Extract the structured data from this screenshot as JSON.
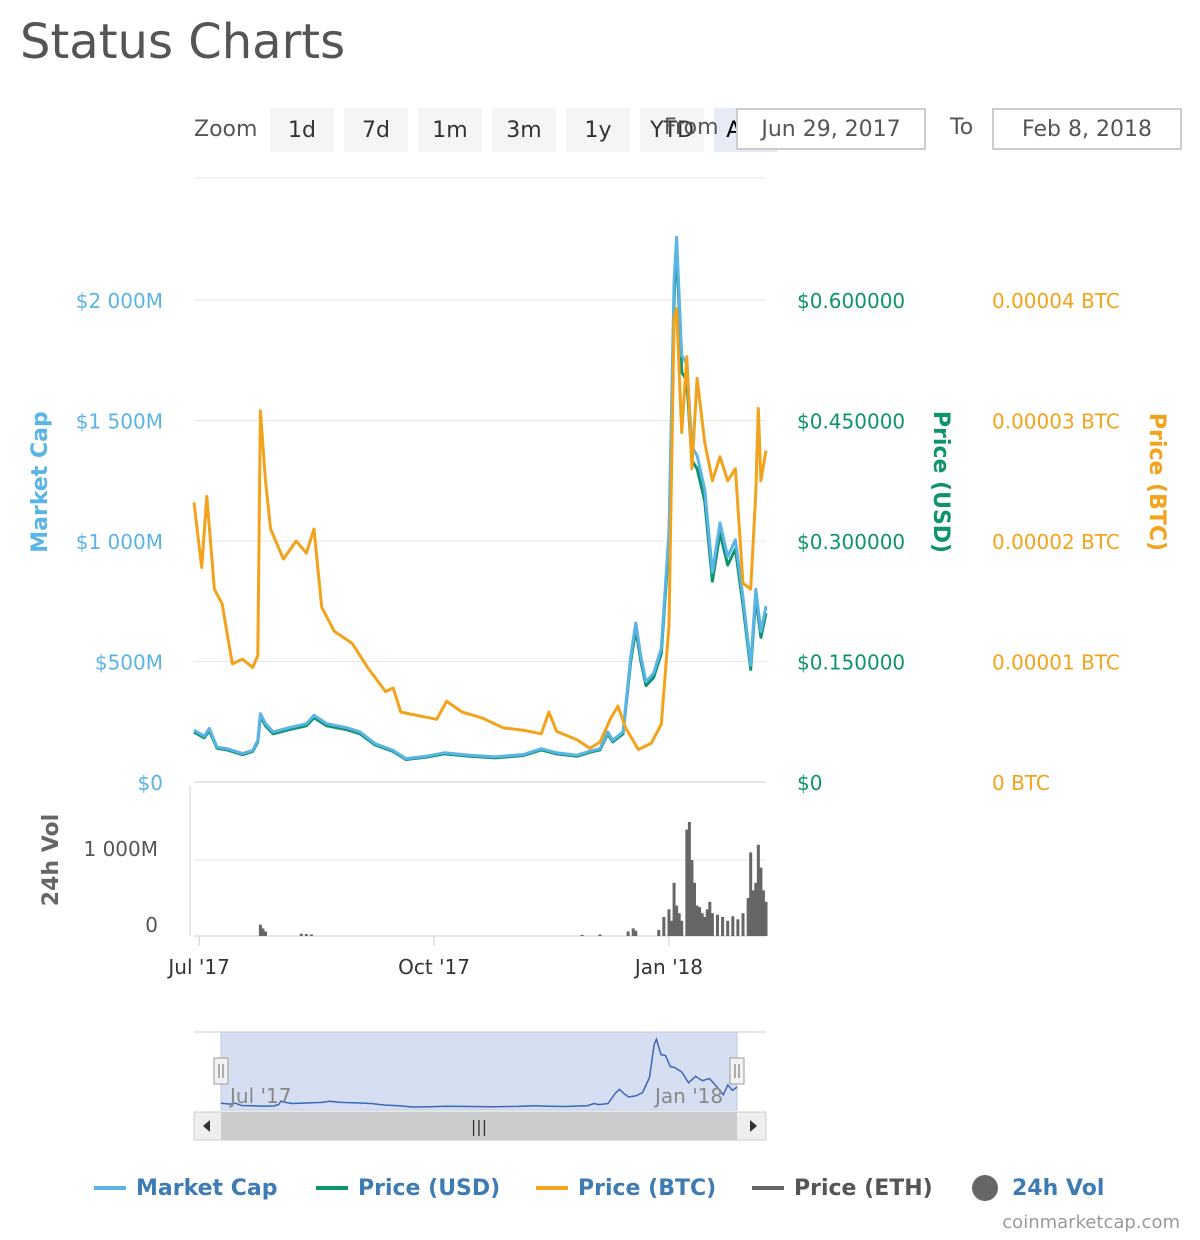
{
  "page": {
    "title": "Status Charts"
  },
  "zoom": {
    "label": "Zoom",
    "buttons": [
      "1d",
      "7d",
      "1m",
      "3m",
      "1y",
      "YTD",
      "ALL"
    ],
    "active": "ALL"
  },
  "range": {
    "from_label": "From",
    "from_value": "Jun 29, 2017",
    "to_label": "To",
    "to_value": "Feb 8, 2018"
  },
  "colors": {
    "market_cap": "#5ab4e5",
    "price_usd": "#0e946d",
    "price_btc": "#f3a21b",
    "price_eth": "#666666",
    "volume": "#666666",
    "navigator_fill": "#d2dbef",
    "navigator_line": "#3c66b8"
  },
  "legend": [
    {
      "label": "Market Cap",
      "color": "#5ab4e5",
      "symbol": "line"
    },
    {
      "label": "Price (USD)",
      "color": "#0e946d",
      "symbol": "line"
    },
    {
      "label": "Price (BTC)",
      "color": "#f3a21b",
      "symbol": "line"
    },
    {
      "label": "Price (ETH)",
      "color": "#666666",
      "symbol": "line"
    },
    {
      "label": "24h Vol",
      "color": "#666666",
      "symbol": "circle"
    }
  ],
  "credits": "coinmarketcap.com",
  "chart_data": {
    "type": "line",
    "axes": {
      "market_cap": {
        "title": "Market Cap",
        "ticks": [
          "$0",
          "$500M",
          "$1 000M",
          "$1 500M",
          "$2 000M"
        ],
        "ylim": [
          0,
          2000000000
        ],
        "color": "#5ab4e5"
      },
      "price_usd": {
        "title": "Price (USD)",
        "ticks": [
          "$0",
          "$0.150000",
          "$0.300000",
          "$0.450000",
          "$0.600000"
        ],
        "ylim": [
          0,
          0.6
        ],
        "color": "#0e946d"
      },
      "price_btc": {
        "title": "Price (BTC)",
        "ticks": [
          "0 BTC",
          "0.00001 BTC",
          "0.00002 BTC",
          "0.00003 BTC",
          "0.00004 BTC"
        ],
        "ylim": [
          0,
          4e-05
        ],
        "color": "#f3a21b"
      },
      "volume": {
        "title": "24h Vol",
        "ticks": [
          "0",
          "1 000M"
        ],
        "ylim": [
          0,
          1000000000
        ]
      },
      "x": {
        "ticks": [
          "Jul '17",
          "Oct '17",
          "Jan '18"
        ],
        "range": [
          "2017-06-29",
          "2018-02-08"
        ]
      }
    },
    "navigator": {
      "labels": [
        "Jul '17",
        "Jan '18"
      ]
    },
    "series": [
      {
        "name": "Price (USD)",
        "axis": "price_usd",
        "color": "#0e946d",
        "points": [
          [
            "2017-06-29",
            0.062
          ],
          [
            "2017-07-03",
            0.055
          ],
          [
            "2017-07-05",
            0.064
          ],
          [
            "2017-07-08",
            0.042
          ],
          [
            "2017-07-12",
            0.04
          ],
          [
            "2017-07-18",
            0.034
          ],
          [
            "2017-07-22",
            0.038
          ],
          [
            "2017-07-24",
            0.05
          ],
          [
            "2017-07-25",
            0.082
          ],
          [
            "2017-07-27",
            0.07
          ],
          [
            "2017-07-30",
            0.06
          ],
          [
            "2017-08-05",
            0.065
          ],
          [
            "2017-08-12",
            0.07
          ],
          [
            "2017-08-15",
            0.08
          ],
          [
            "2017-08-20",
            0.07
          ],
          [
            "2017-08-28",
            0.065
          ],
          [
            "2017-09-02",
            0.06
          ],
          [
            "2017-09-08",
            0.046
          ],
          [
            "2017-09-15",
            0.038
          ],
          [
            "2017-09-20",
            0.028
          ],
          [
            "2017-09-28",
            0.031
          ],
          [
            "2017-10-05",
            0.035
          ],
          [
            "2017-10-15",
            0.032
          ],
          [
            "2017-10-25",
            0.03
          ],
          [
            "2017-11-05",
            0.033
          ],
          [
            "2017-11-12",
            0.04
          ],
          [
            "2017-11-18",
            0.035
          ],
          [
            "2017-11-26",
            0.032
          ],
          [
            "2017-12-01",
            0.037
          ],
          [
            "2017-12-05",
            0.04
          ],
          [
            "2017-12-08",
            0.06
          ],
          [
            "2017-12-10",
            0.05
          ],
          [
            "2017-12-14",
            0.06
          ],
          [
            "2017-12-17",
            0.15
          ],
          [
            "2017-12-19",
            0.19
          ],
          [
            "2017-12-21",
            0.15
          ],
          [
            "2017-12-23",
            0.12
          ],
          [
            "2017-12-26",
            0.13
          ],
          [
            "2017-12-29",
            0.16
          ],
          [
            "2018-01-01",
            0.3
          ],
          [
            "2018-01-03",
            0.6
          ],
          [
            "2018-01-04",
            0.67
          ],
          [
            "2018-01-06",
            0.51
          ],
          [
            "2018-01-08",
            0.5
          ],
          [
            "2018-01-10",
            0.4
          ],
          [
            "2018-01-12",
            0.39
          ],
          [
            "2018-01-15",
            0.35
          ],
          [
            "2018-01-18",
            0.25
          ],
          [
            "2018-01-21",
            0.31
          ],
          [
            "2018-01-24",
            0.27
          ],
          [
            "2018-01-27",
            0.29
          ],
          [
            "2018-01-30",
            0.22
          ],
          [
            "2018-02-02",
            0.14
          ],
          [
            "2018-02-04",
            0.23
          ],
          [
            "2018-02-06",
            0.18
          ],
          [
            "2018-02-08",
            0.21
          ]
        ]
      },
      {
        "name": "Market Cap",
        "axis": "market_cap",
        "color": "#5ab4e5",
        "points": [
          [
            "2017-06-29",
            215000000
          ],
          [
            "2017-07-03",
            190000000
          ],
          [
            "2017-07-05",
            222000000
          ],
          [
            "2017-07-08",
            145000000
          ],
          [
            "2017-07-12",
            138000000
          ],
          [
            "2017-07-18",
            118000000
          ],
          [
            "2017-07-22",
            131000000
          ],
          [
            "2017-07-24",
            173000000
          ],
          [
            "2017-07-25",
            284000000
          ],
          [
            "2017-07-27",
            242000000
          ],
          [
            "2017-07-30",
            208000000
          ],
          [
            "2017-08-05",
            225000000
          ],
          [
            "2017-08-12",
            242000000
          ],
          [
            "2017-08-15",
            277000000
          ],
          [
            "2017-08-20",
            242000000
          ],
          [
            "2017-08-28",
            225000000
          ],
          [
            "2017-09-02",
            208000000
          ],
          [
            "2017-09-08",
            159000000
          ],
          [
            "2017-09-15",
            131000000
          ],
          [
            "2017-09-20",
            97000000
          ],
          [
            "2017-09-28",
            107000000
          ],
          [
            "2017-10-05",
            121000000
          ],
          [
            "2017-10-15",
            111000000
          ],
          [
            "2017-10-25",
            104000000
          ],
          [
            "2017-11-05",
            114000000
          ],
          [
            "2017-11-12",
            138000000
          ],
          [
            "2017-11-18",
            121000000
          ],
          [
            "2017-11-26",
            111000000
          ],
          [
            "2017-12-01",
            128000000
          ],
          [
            "2017-12-05",
            138000000
          ],
          [
            "2017-12-08",
            208000000
          ],
          [
            "2017-12-10",
            173000000
          ],
          [
            "2017-12-14",
            208000000
          ],
          [
            "2017-12-17",
            520000000
          ],
          [
            "2017-12-19",
            660000000
          ],
          [
            "2017-12-21",
            520000000
          ],
          [
            "2017-12-23",
            416000000
          ],
          [
            "2017-12-26",
            451000000
          ],
          [
            "2017-12-29",
            555000000
          ],
          [
            "2018-01-01",
            1040000000
          ],
          [
            "2018-01-03",
            2080000000
          ],
          [
            "2018-01-04",
            2260000000
          ],
          [
            "2018-01-06",
            1770000000
          ],
          [
            "2018-01-08",
            1735000000
          ],
          [
            "2018-01-10",
            1390000000
          ],
          [
            "2018-01-12",
            1355000000
          ],
          [
            "2018-01-15",
            1215000000
          ],
          [
            "2018-01-18",
            870000000
          ],
          [
            "2018-01-21",
            1075000000
          ],
          [
            "2018-01-24",
            935000000
          ],
          [
            "2018-01-27",
            1005000000
          ],
          [
            "2018-01-30",
            765000000
          ],
          [
            "2018-02-02",
            485000000
          ],
          [
            "2018-02-04",
            800000000
          ],
          [
            "2018-02-06",
            625000000
          ],
          [
            "2018-02-08",
            730000000
          ]
        ]
      },
      {
        "name": "Price (BTC)",
        "axis": "price_btc",
        "color": "#f3a21b",
        "points": [
          [
            "2017-06-29",
            2.32e-05
          ],
          [
            "2017-07-02",
            1.78e-05
          ],
          [
            "2017-07-04",
            2.37e-05
          ],
          [
            "2017-07-07",
            1.6e-05
          ],
          [
            "2017-07-10",
            1.48e-05
          ],
          [
            "2017-07-14",
            9.8e-06
          ],
          [
            "2017-07-18",
            1.02e-05
          ],
          [
            "2017-07-22",
            9.5e-06
          ],
          [
            "2017-07-24",
            1.05e-05
          ],
          [
            "2017-07-25",
            3.08e-05
          ],
          [
            "2017-07-27",
            2.5e-05
          ],
          [
            "2017-07-29",
            2.1e-05
          ],
          [
            "2017-08-03",
            1.85e-05
          ],
          [
            "2017-08-08",
            2e-05
          ],
          [
            "2017-08-12",
            1.9e-05
          ],
          [
            "2017-08-15",
            2.1e-05
          ],
          [
            "2017-08-18",
            1.45e-05
          ],
          [
            "2017-08-23",
            1.25e-05
          ],
          [
            "2017-08-30",
            1.15e-05
          ],
          [
            "2017-09-05",
            9.5e-06
          ],
          [
            "2017-09-12",
            7.5e-06
          ],
          [
            "2017-09-15",
            7.8e-06
          ],
          [
            "2017-09-18",
            5.8e-06
          ],
          [
            "2017-09-25",
            5.5e-06
          ],
          [
            "2017-10-02",
            5.2e-06
          ],
          [
            "2017-10-06",
            6.7e-06
          ],
          [
            "2017-10-12",
            5.8e-06
          ],
          [
            "2017-10-20",
            5.3e-06
          ],
          [
            "2017-10-28",
            4.5e-06
          ],
          [
            "2017-11-05",
            4.3e-06
          ],
          [
            "2017-11-12",
            4e-06
          ],
          [
            "2017-11-15",
            5.8e-06
          ],
          [
            "2017-11-18",
            4.2e-06
          ],
          [
            "2017-11-26",
            3.5e-06
          ],
          [
            "2017-12-01",
            2.8e-06
          ],
          [
            "2017-12-05",
            3.3e-06
          ],
          [
            "2017-12-09",
            5.2e-06
          ],
          [
            "2017-12-12",
            6.3e-06
          ],
          [
            "2017-12-15",
            4.5e-06
          ],
          [
            "2017-12-20",
            2.7e-06
          ],
          [
            "2017-12-25",
            3.2e-06
          ],
          [
            "2017-12-29",
            4.8e-06
          ],
          [
            "2018-01-01",
            1.3e-05
          ],
          [
            "2018-01-03",
            3.85e-05
          ],
          [
            "2018-01-04",
            3.93e-05
          ],
          [
            "2018-01-06",
            2.9e-05
          ],
          [
            "2018-01-08",
            3.53e-05
          ],
          [
            "2018-01-10",
            2.6e-05
          ],
          [
            "2018-01-12",
            3.35e-05
          ],
          [
            "2018-01-15",
            2.82e-05
          ],
          [
            "2018-01-18",
            2.5e-05
          ],
          [
            "2018-01-21",
            2.7e-05
          ],
          [
            "2018-01-24",
            2.5e-05
          ],
          [
            "2018-01-27",
            2.6e-05
          ],
          [
            "2018-01-30",
            1.65e-05
          ],
          [
            "2018-02-02",
            1.6e-05
          ],
          [
            "2018-02-04",
            2.4e-05
          ],
          [
            "2018-02-05",
            3.1e-05
          ],
          [
            "2018-02-06",
            2.5e-05
          ],
          [
            "2018-02-08",
            2.75e-05
          ]
        ]
      },
      {
        "name": "Market Cap (fill)",
        "axis": "market_cap",
        "color": "#3c66b8",
        "navigator_only": true,
        "points": []
      }
    ],
    "volume": {
      "name": "24h Vol",
      "axis": "volume",
      "color": "#666666",
      "points": [
        [
          "2017-07-25",
          150000000
        ],
        [
          "2017-07-26",
          100000000
        ],
        [
          "2017-07-27",
          60000000
        ],
        [
          "2017-08-10",
          30000000
        ],
        [
          "2017-08-12",
          25000000
        ],
        [
          "2017-08-14",
          20000000
        ],
        [
          "2017-11-28",
          15000000
        ],
        [
          "2017-12-05",
          20000000
        ],
        [
          "2017-12-16",
          60000000
        ],
        [
          "2017-12-18",
          100000000
        ],
        [
          "2017-12-19",
          70000000
        ],
        [
          "2017-12-28",
          80000000
        ],
        [
          "2017-12-30",
          250000000
        ],
        [
          "2018-01-01",
          350000000
        ],
        [
          "2018-01-02",
          200000000
        ],
        [
          "2018-01-03",
          700000000
        ],
        [
          "2018-01-04",
          400000000
        ],
        [
          "2018-01-05",
          300000000
        ],
        [
          "2018-01-06",
          200000000
        ],
        [
          "2018-01-08",
          1400000000
        ],
        [
          "2018-01-09",
          1500000000
        ],
        [
          "2018-01-10",
          1000000000
        ],
        [
          "2018-01-11",
          700000000
        ],
        [
          "2018-01-12",
          400000000
        ],
        [
          "2018-01-13",
          380000000
        ],
        [
          "2018-01-14",
          300000000
        ],
        [
          "2018-01-15",
          250000000
        ],
        [
          "2018-01-16",
          350000000
        ],
        [
          "2018-01-17",
          450000000
        ],
        [
          "2018-01-18",
          300000000
        ],
        [
          "2018-01-20",
          280000000
        ],
        [
          "2018-01-22",
          250000000
        ],
        [
          "2018-01-24",
          200000000
        ],
        [
          "2018-01-26",
          260000000
        ],
        [
          "2018-01-28",
          220000000
        ],
        [
          "2018-01-30",
          300000000
        ],
        [
          "2018-02-01",
          500000000
        ],
        [
          "2018-02-02",
          1100000000
        ],
        [
          "2018-02-03",
          600000000
        ],
        [
          "2018-02-04",
          700000000
        ],
        [
          "2018-02-05",
          1200000000
        ],
        [
          "2018-02-06",
          900000000
        ],
        [
          "2018-02-07",
          600000000
        ],
        [
          "2018-02-08",
          450000000
        ]
      ]
    }
  }
}
